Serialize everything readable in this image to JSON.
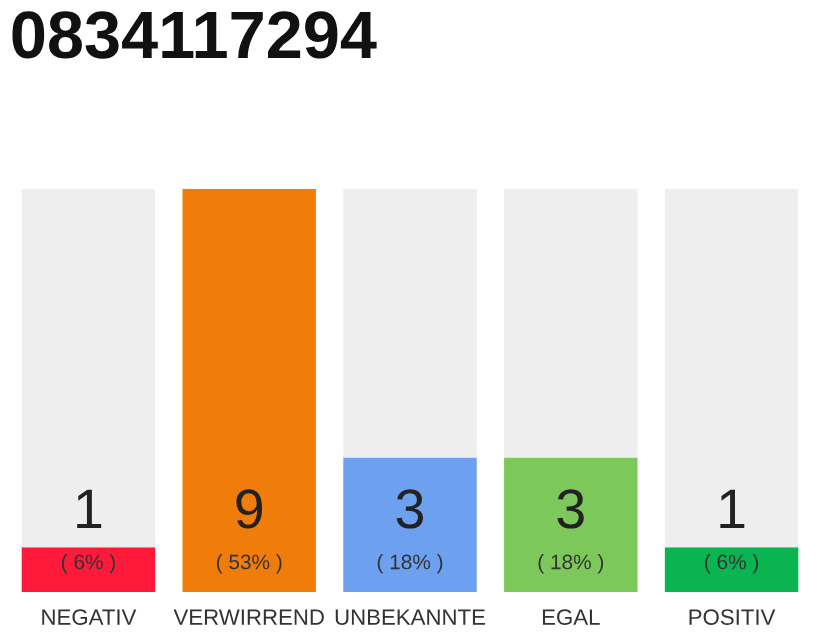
{
  "chart_data": {
    "type": "bar",
    "title": "0834117294",
    "categories": [
      "NEGATIV",
      "VERWIRREND",
      "UNBEKANNTE",
      "EGAL",
      "POSITIV"
    ],
    "stacked": true,
    "series": [
      {
        "values": [
          1,
          9,
          3,
          3,
          1
        ],
        "value_labels": [
          "1",
          "9",
          "3",
          "3",
          "1"
        ],
        "colors": [
          "#ff1a3c",
          "#f07d0a",
          "#6ea0f0",
          "#7dc85a",
          "#0ab450"
        ]
      },
      {
        "values": [
          8,
          0,
          6,
          6,
          8
        ],
        "color": "#eeeeee"
      }
    ],
    "annotations": [
      "( 6% )",
      "( 53% )",
      "( 18% )",
      "( 18% )",
      "( 6% )"
    ],
    "grid": false,
    "legend": false
  }
}
